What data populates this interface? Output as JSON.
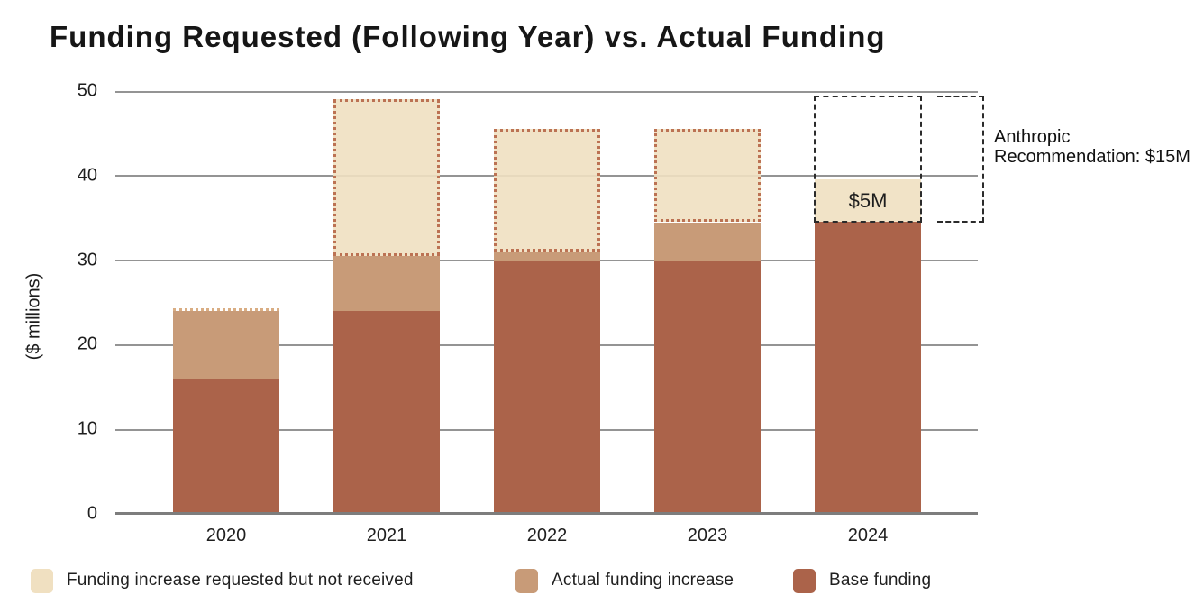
{
  "title": "Funding Requested (Following Year) vs. Actual Funding",
  "y_axis": {
    "label": "($ millions)",
    "ticks": [
      "50",
      "40",
      "30",
      "20",
      "10",
      "0"
    ]
  },
  "chart_data": {
    "type": "bar",
    "stacked": true,
    "title": "Funding Requested (Following Year) vs. Actual Funding",
    "ylabel": "($ millions)",
    "ylim": [
      0,
      50
    ],
    "grid": true,
    "categories": [
      "2020",
      "2021",
      "2022",
      "2023",
      "2024"
    ],
    "series": [
      {
        "name": "Base funding",
        "color": "#ab634a",
        "values": [
          16,
          24,
          30,
          30,
          34.5
        ]
      },
      {
        "name": "Actual funding increase",
        "color": "#c89b78",
        "values": [
          8,
          6.5,
          1,
          4.5,
          0
        ]
      },
      {
        "name": "Funding increase requested but not received",
        "color": "#f0e0c1",
        "style": "dotted-outline",
        "values": [
          0,
          18.5,
          14.5,
          11,
          5
        ]
      }
    ],
    "bar_labels": [
      {
        "category": "2024",
        "segment": "requested",
        "text": "$5M"
      }
    ],
    "annotation": {
      "label": "Anthropic Recommendation: $15M",
      "value": 15,
      "category": "2024",
      "style": "dashed-box"
    }
  },
  "legend": {
    "items": [
      {
        "label": "Funding increase requested but not received",
        "color": "#f0e0c1"
      },
      {
        "label": "Actual funding increase",
        "color": "#c89b78"
      },
      {
        "label": "Base funding",
        "color": "#ab634a"
      }
    ]
  }
}
